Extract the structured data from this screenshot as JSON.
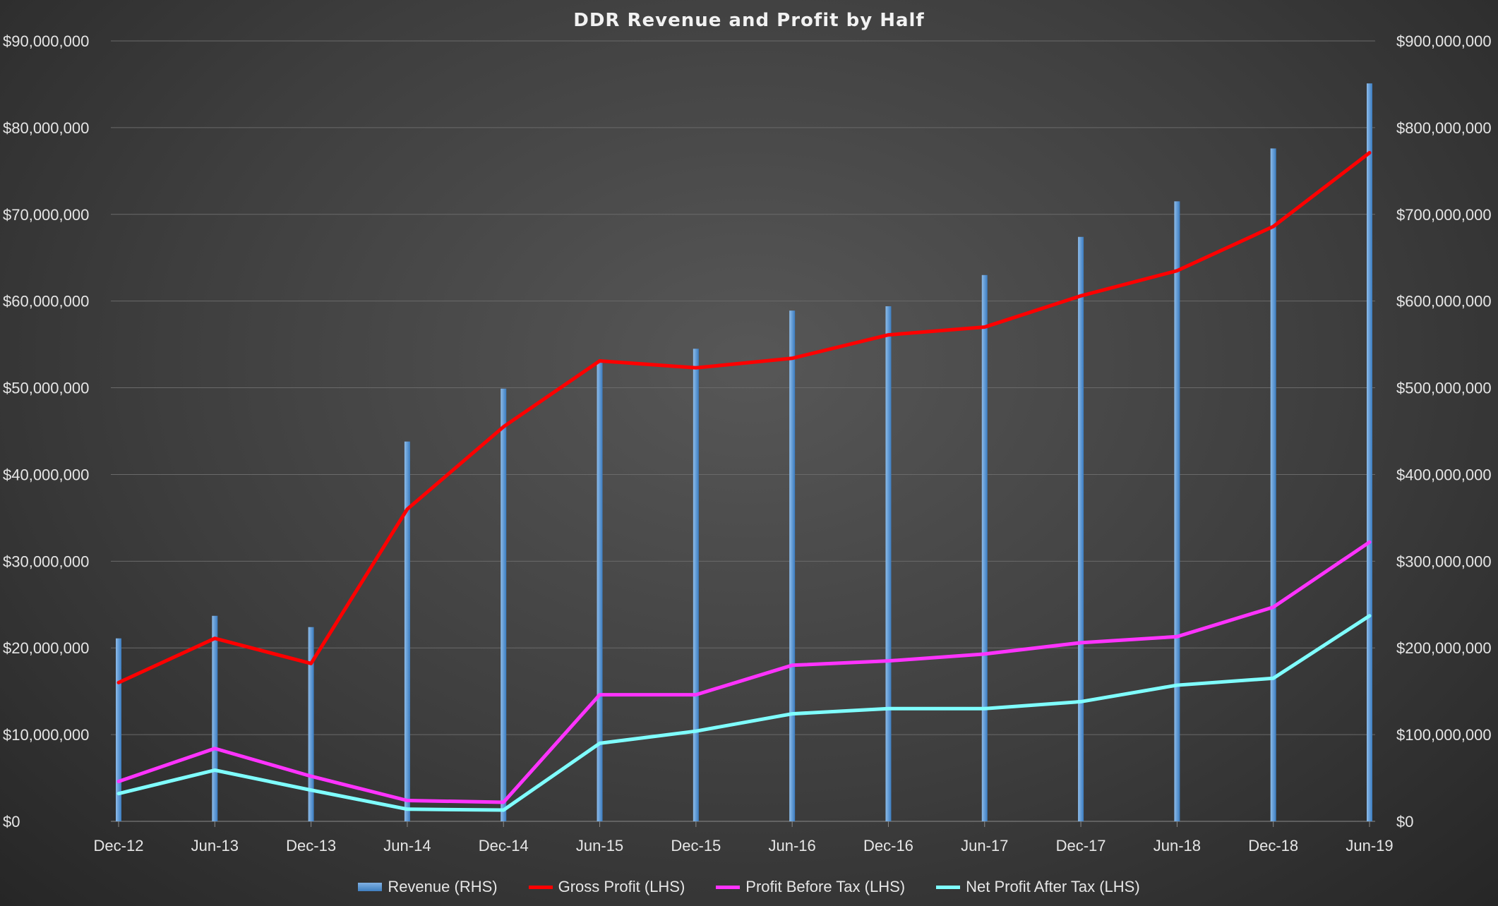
{
  "chart_data": {
    "type": "bar+line",
    "title": "DDR Revenue and Profit by Half",
    "categories": [
      "Dec-12",
      "Jun-13",
      "Dec-13",
      "Jun-14",
      "Dec-14",
      "Jun-15",
      "Dec-15",
      "Jun-16",
      "Dec-16",
      "Jun-17",
      "Dec-17",
      "Jun-18",
      "Dec-18",
      "Jun-19"
    ],
    "left_axis": {
      "range": [
        0,
        90000000
      ],
      "ticks": [
        "$0",
        "$10,000,000",
        "$20,000,000",
        "$30,000,000",
        "$40,000,000",
        "$50,000,000",
        "$60,000,000",
        "$70,000,000",
        "$80,000,000",
        "$90,000,000"
      ]
    },
    "right_axis": {
      "range": [
        0,
        900000000
      ],
      "ticks": [
        "$0",
        "$100,000,000",
        "$200,000,000",
        "$300,000,000",
        "$400,000,000",
        "$500,000,000",
        "$600,000,000",
        "$700,000,000",
        "$800,000,000",
        "$900,000,000"
      ]
    },
    "grid": true,
    "legend_position": "bottom",
    "series": [
      {
        "name": "Revenue (RHS)",
        "type": "bar",
        "axis": "right",
        "color": "#5b9bd5",
        "values": [
          211000000,
          237000000,
          224000000,
          438000000,
          499000000,
          531000000,
          545000000,
          589000000,
          594000000,
          630000000,
          674000000,
          715000000,
          776000000,
          851000000
        ]
      },
      {
        "name": "Gross Profit (LHS)",
        "type": "line",
        "axis": "left",
        "color": "#ff0000",
        "values": [
          16000000,
          21100000,
          18200000,
          36000000,
          45500000,
          53100000,
          52300000,
          53400000,
          56100000,
          57000000,
          60600000,
          63500000,
          68600000,
          77100000
        ]
      },
      {
        "name": "Profit Before Tax (LHS)",
        "type": "line",
        "axis": "left",
        "color": "#ff33ff",
        "values": [
          4600000,
          8400000,
          5200000,
          2400000,
          2200000,
          14600000,
          14600000,
          18000000,
          18500000,
          19300000,
          20600000,
          21300000,
          24700000,
          32200000
        ]
      },
      {
        "name": "Net Profit After Tax (LHS)",
        "type": "line",
        "axis": "left",
        "color": "#7fffff",
        "values": [
          3200000,
          5900000,
          3600000,
          1400000,
          1300000,
          9000000,
          10400000,
          12400000,
          13000000,
          13000000,
          13800000,
          15700000,
          16500000,
          23700000
        ]
      }
    ]
  }
}
